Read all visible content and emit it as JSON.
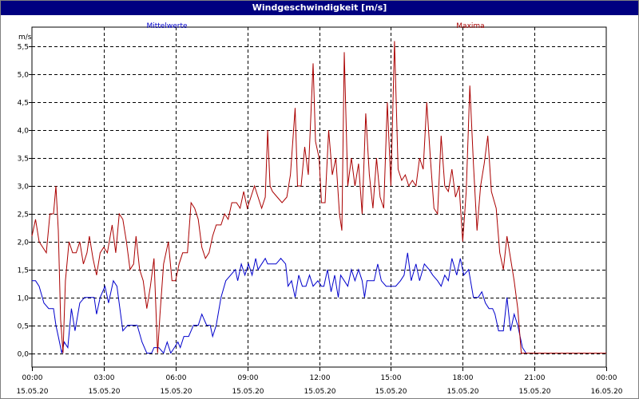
{
  "window": {
    "title": "Windgeschwindigkeit [m/s]"
  },
  "colors": {
    "mean": "#0000cc",
    "max": "#aa0000",
    "grid": "#000000",
    "title_bg": "#000080"
  },
  "chart_data": {
    "type": "line",
    "title": "Windgeschwindigkeit [m/s]",
    "ylabel": "m/s",
    "ylim": [
      -0.25,
      5.85
    ],
    "yticks": [
      {
        "v": 0.0,
        "label": "0,0"
      },
      {
        "v": 0.5,
        "label": "0,5"
      },
      {
        "v": 1.0,
        "label": "1,0"
      },
      {
        "v": 1.5,
        "label": "1,5"
      },
      {
        "v": 2.0,
        "label": "2,0"
      },
      {
        "v": 2.5,
        "label": "2,5"
      },
      {
        "v": 3.0,
        "label": "3,0"
      },
      {
        "v": 3.5,
        "label": "3,5"
      },
      {
        "v": 4.0,
        "label": "4,0"
      },
      {
        "v": 4.5,
        "label": "4,5"
      },
      {
        "v": 5.0,
        "label": "5,0"
      },
      {
        "v": 5.5,
        "label": "5,5"
      }
    ],
    "xlim": [
      0,
      24
    ],
    "xticks": [
      {
        "h": 0,
        "time": "00:00",
        "date": "15.05.20"
      },
      {
        "h": 3,
        "time": "03:00",
        "date": "15.05.20"
      },
      {
        "h": 6,
        "time": "06:00",
        "date": "15.05.20"
      },
      {
        "h": 9,
        "time": "09:00",
        "date": "15.05.20"
      },
      {
        "h": 12,
        "time": "12:00",
        "date": "15.05.20"
      },
      {
        "h": 15,
        "time": "15:00",
        "date": "15.05.20"
      },
      {
        "h": 18,
        "time": "18:00",
        "date": "15.05.20"
      },
      {
        "h": 21,
        "time": "21:00",
        "date": "15.05.20"
      },
      {
        "h": 24,
        "time": "00:00",
        "date": "16.05.20"
      }
    ],
    "grid": true,
    "series": [
      {
        "name": "Mittelwerte",
        "color": "#0000cc",
        "points": [
          [
            0.0,
            1.3
          ],
          [
            0.15,
            1.3
          ],
          [
            0.3,
            1.2
          ],
          [
            0.5,
            0.9
          ],
          [
            0.7,
            0.8
          ],
          [
            0.9,
            0.8
          ],
          [
            1.0,
            0.5
          ],
          [
            1.1,
            0.3
          ],
          [
            1.2,
            0.1
          ],
          [
            1.25,
            0.0
          ],
          [
            1.35,
            0.2
          ],
          [
            1.5,
            0.1
          ],
          [
            1.65,
            0.8
          ],
          [
            1.8,
            0.4
          ],
          [
            2.0,
            0.9
          ],
          [
            2.2,
            1.0
          ],
          [
            2.4,
            1.0
          ],
          [
            2.6,
            1.0
          ],
          [
            2.7,
            0.7
          ],
          [
            2.85,
            1.0
          ],
          [
            3.05,
            1.2
          ],
          [
            3.2,
            0.9
          ],
          [
            3.4,
            1.3
          ],
          [
            3.55,
            1.2
          ],
          [
            3.8,
            0.4
          ],
          [
            4.0,
            0.5
          ],
          [
            4.2,
            0.5
          ],
          [
            4.4,
            0.5
          ],
          [
            4.6,
            0.2
          ],
          [
            4.8,
            0.0
          ],
          [
            5.0,
            0.0
          ],
          [
            5.1,
            0.1
          ],
          [
            5.3,
            0.1
          ],
          [
            5.5,
            0.0
          ],
          [
            5.65,
            0.2
          ],
          [
            5.8,
            0.0
          ],
          [
            5.95,
            0.1
          ],
          [
            6.1,
            0.2
          ],
          [
            6.2,
            0.1
          ],
          [
            6.35,
            0.3
          ],
          [
            6.55,
            0.3
          ],
          [
            6.75,
            0.5
          ],
          [
            6.95,
            0.5
          ],
          [
            7.1,
            0.7
          ],
          [
            7.3,
            0.5
          ],
          [
            7.45,
            0.5
          ],
          [
            7.55,
            0.3
          ],
          [
            7.7,
            0.5
          ],
          [
            7.9,
            1.0
          ],
          [
            8.1,
            1.3
          ],
          [
            8.3,
            1.4
          ],
          [
            8.5,
            1.5
          ],
          [
            8.6,
            1.3
          ],
          [
            8.75,
            1.6
          ],
          [
            8.9,
            1.4
          ],
          [
            9.05,
            1.6
          ],
          [
            9.2,
            1.4
          ],
          [
            9.35,
            1.7
          ],
          [
            9.45,
            1.5
          ],
          [
            9.6,
            1.6
          ],
          [
            9.75,
            1.7
          ],
          [
            9.85,
            1.6
          ],
          [
            10.0,
            1.6
          ],
          [
            10.2,
            1.6
          ],
          [
            10.4,
            1.7
          ],
          [
            10.6,
            1.6
          ],
          [
            10.7,
            1.2
          ],
          [
            10.85,
            1.3
          ],
          [
            11.0,
            1.0
          ],
          [
            11.15,
            1.4
          ],
          [
            11.3,
            1.2
          ],
          [
            11.45,
            1.2
          ],
          [
            11.6,
            1.4
          ],
          [
            11.75,
            1.2
          ],
          [
            11.95,
            1.3
          ],
          [
            12.1,
            1.2
          ],
          [
            12.2,
            1.2
          ],
          [
            12.35,
            1.5
          ],
          [
            12.5,
            1.1
          ],
          [
            12.65,
            1.4
          ],
          [
            12.8,
            1.0
          ],
          [
            12.9,
            1.4
          ],
          [
            13.05,
            1.3
          ],
          [
            13.2,
            1.2
          ],
          [
            13.35,
            1.5
          ],
          [
            13.5,
            1.3
          ],
          [
            13.65,
            1.5
          ],
          [
            13.8,
            1.3
          ],
          [
            13.9,
            1.0
          ],
          [
            14.0,
            1.3
          ],
          [
            14.3,
            1.3
          ],
          [
            14.45,
            1.6
          ],
          [
            14.6,
            1.3
          ],
          [
            14.8,
            1.2
          ],
          [
            15.05,
            1.2
          ],
          [
            15.2,
            1.2
          ],
          [
            15.4,
            1.3
          ],
          [
            15.55,
            1.4
          ],
          [
            15.7,
            1.8
          ],
          [
            15.85,
            1.3
          ],
          [
            16.05,
            1.6
          ],
          [
            16.2,
            1.3
          ],
          [
            16.4,
            1.6
          ],
          [
            16.6,
            1.5
          ],
          [
            16.75,
            1.4
          ],
          [
            16.95,
            1.3
          ],
          [
            17.1,
            1.2
          ],
          [
            17.25,
            1.4
          ],
          [
            17.4,
            1.3
          ],
          [
            17.55,
            1.7
          ],
          [
            17.75,
            1.4
          ],
          [
            17.9,
            1.7
          ],
          [
            18.05,
            1.4
          ],
          [
            18.25,
            1.5
          ],
          [
            18.45,
            1.0
          ],
          [
            18.65,
            1.0
          ],
          [
            18.8,
            1.1
          ],
          [
            18.95,
            0.9
          ],
          [
            19.1,
            0.8
          ],
          [
            19.25,
            0.8
          ],
          [
            19.35,
            0.7
          ],
          [
            19.5,
            0.4
          ],
          [
            19.7,
            0.4
          ],
          [
            19.85,
            1.0
          ],
          [
            20.0,
            0.4
          ],
          [
            20.15,
            0.7
          ],
          [
            20.3,
            0.5
          ],
          [
            20.5,
            0.1
          ],
          [
            20.65,
            0.0
          ],
          [
            24.0,
            0.0
          ]
        ]
      },
      {
        "name": "Maxima",
        "color": "#aa0000",
        "points": [
          [
            0.0,
            2.1
          ],
          [
            0.15,
            2.4
          ],
          [
            0.3,
            2.0
          ],
          [
            0.45,
            1.9
          ],
          [
            0.6,
            1.8
          ],
          [
            0.75,
            2.5
          ],
          [
            0.9,
            2.5
          ],
          [
            1.0,
            3.0
          ],
          [
            1.1,
            2.2
          ],
          [
            1.2,
            0.6
          ],
          [
            1.3,
            0.0
          ],
          [
            1.4,
            1.3
          ],
          [
            1.55,
            2.0
          ],
          [
            1.7,
            1.8
          ],
          [
            1.85,
            1.8
          ],
          [
            2.0,
            2.0
          ],
          [
            2.15,
            1.6
          ],
          [
            2.3,
            1.8
          ],
          [
            2.4,
            2.1
          ],
          [
            2.55,
            1.7
          ],
          [
            2.7,
            1.4
          ],
          [
            2.85,
            1.8
          ],
          [
            3.0,
            1.9
          ],
          [
            3.15,
            1.8
          ],
          [
            3.35,
            2.3
          ],
          [
            3.5,
            1.8
          ],
          [
            3.65,
            2.5
          ],
          [
            3.8,
            2.4
          ],
          [
            3.95,
            2.0
          ],
          [
            4.1,
            1.5
          ],
          [
            4.25,
            1.6
          ],
          [
            4.35,
            2.1
          ],
          [
            4.5,
            1.5
          ],
          [
            4.65,
            1.3
          ],
          [
            4.8,
            0.8
          ],
          [
            4.95,
            1.2
          ],
          [
            5.1,
            1.7
          ],
          [
            5.25,
            0.0
          ],
          [
            5.35,
            0.7
          ],
          [
            5.5,
            1.6
          ],
          [
            5.7,
            2.0
          ],
          [
            5.85,
            1.3
          ],
          [
            6.0,
            1.3
          ],
          [
            6.15,
            1.6
          ],
          [
            6.3,
            1.8
          ],
          [
            6.5,
            1.8
          ],
          [
            6.65,
            2.7
          ],
          [
            6.8,
            2.6
          ],
          [
            6.95,
            2.4
          ],
          [
            7.1,
            1.9
          ],
          [
            7.25,
            1.7
          ],
          [
            7.4,
            1.8
          ],
          [
            7.55,
            2.1
          ],
          [
            7.7,
            2.3
          ],
          [
            7.9,
            2.3
          ],
          [
            8.05,
            2.5
          ],
          [
            8.2,
            2.4
          ],
          [
            8.35,
            2.7
          ],
          [
            8.55,
            2.7
          ],
          [
            8.7,
            2.6
          ],
          [
            8.85,
            2.9
          ],
          [
            9.0,
            2.6
          ],
          [
            9.15,
            2.8
          ],
          [
            9.3,
            3.0
          ],
          [
            9.45,
            2.8
          ],
          [
            9.6,
            2.6
          ],
          [
            9.75,
            2.8
          ],
          [
            9.85,
            4.0
          ],
          [
            9.95,
            3.0
          ],
          [
            10.05,
            2.9
          ],
          [
            10.25,
            2.8
          ],
          [
            10.45,
            2.7
          ],
          [
            10.65,
            2.8
          ],
          [
            10.8,
            3.2
          ],
          [
            11.0,
            4.4
          ],
          [
            11.1,
            3.0
          ],
          [
            11.25,
            3.0
          ],
          [
            11.4,
            3.7
          ],
          [
            11.55,
            3.2
          ],
          [
            11.75,
            5.2
          ],
          [
            11.85,
            3.8
          ],
          [
            12.0,
            3.5
          ],
          [
            12.1,
            2.7
          ],
          [
            12.25,
            2.7
          ],
          [
            12.4,
            4.0
          ],
          [
            12.55,
            3.2
          ],
          [
            12.7,
            3.5
          ],
          [
            12.85,
            2.5
          ],
          [
            12.95,
            2.2
          ],
          [
            13.05,
            5.4
          ],
          [
            13.2,
            3.0
          ],
          [
            13.35,
            3.5
          ],
          [
            13.5,
            3.0
          ],
          [
            13.65,
            3.4
          ],
          [
            13.8,
            2.5
          ],
          [
            13.95,
            4.3
          ],
          [
            14.1,
            3.2
          ],
          [
            14.25,
            2.6
          ],
          [
            14.4,
            3.5
          ],
          [
            14.55,
            2.8
          ],
          [
            14.7,
            2.6
          ],
          [
            14.85,
            4.5
          ],
          [
            15.0,
            3.0
          ],
          [
            15.15,
            5.6
          ],
          [
            15.3,
            3.3
          ],
          [
            15.45,
            3.1
          ],
          [
            15.6,
            3.2
          ],
          [
            15.75,
            3.0
          ],
          [
            15.9,
            3.1
          ],
          [
            16.05,
            3.0
          ],
          [
            16.2,
            3.5
          ],
          [
            16.35,
            3.3
          ],
          [
            16.5,
            4.5
          ],
          [
            16.65,
            3.5
          ],
          [
            16.8,
            2.6
          ],
          [
            16.95,
            2.5
          ],
          [
            17.1,
            3.9
          ],
          [
            17.25,
            3.0
          ],
          [
            17.4,
            2.9
          ],
          [
            17.55,
            3.3
          ],
          [
            17.7,
            2.8
          ],
          [
            17.85,
            3.0
          ],
          [
            18.0,
            2.0
          ],
          [
            18.15,
            2.9
          ],
          [
            18.3,
            4.8
          ],
          [
            18.45,
            3.4
          ],
          [
            18.6,
            2.2
          ],
          [
            18.75,
            3.0
          ],
          [
            18.9,
            3.4
          ],
          [
            19.05,
            3.9
          ],
          [
            19.2,
            2.9
          ],
          [
            19.4,
            2.6
          ],
          [
            19.55,
            1.8
          ],
          [
            19.7,
            1.5
          ],
          [
            19.85,
            2.1
          ],
          [
            20.0,
            1.7
          ],
          [
            20.15,
            1.3
          ],
          [
            20.3,
            0.8
          ],
          [
            20.45,
            0.0
          ],
          [
            24.0,
            0.0
          ]
        ]
      }
    ]
  }
}
